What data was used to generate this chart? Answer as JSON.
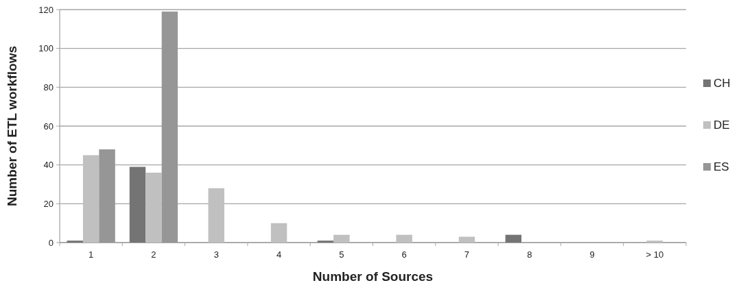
{
  "chart_data": {
    "type": "bar",
    "xlabel": "Number of Sources",
    "ylabel": "Number of ETL workflows",
    "categories": [
      "1",
      "2",
      "3",
      "4",
      "5",
      "6",
      "7",
      "8",
      "9",
      "> 10"
    ],
    "series": [
      {
        "name": "CH",
        "color": "#747474",
        "values": [
          1,
          39,
          null,
          null,
          1,
          null,
          null,
          4,
          null,
          null
        ]
      },
      {
        "name": "DE",
        "color": "#c0c0c0",
        "values": [
          45,
          36,
          28,
          10,
          4,
          4,
          3,
          null,
          null,
          1
        ]
      },
      {
        "name": "ES",
        "color": "#969696",
        "values": [
          48,
          119,
          null,
          null,
          null,
          null,
          null,
          null,
          null,
          null
        ]
      }
    ],
    "ylim": [
      0,
      120
    ],
    "yticks": [
      0,
      20,
      40,
      60,
      80,
      100,
      120
    ],
    "grid": "y",
    "legend": "right"
  }
}
